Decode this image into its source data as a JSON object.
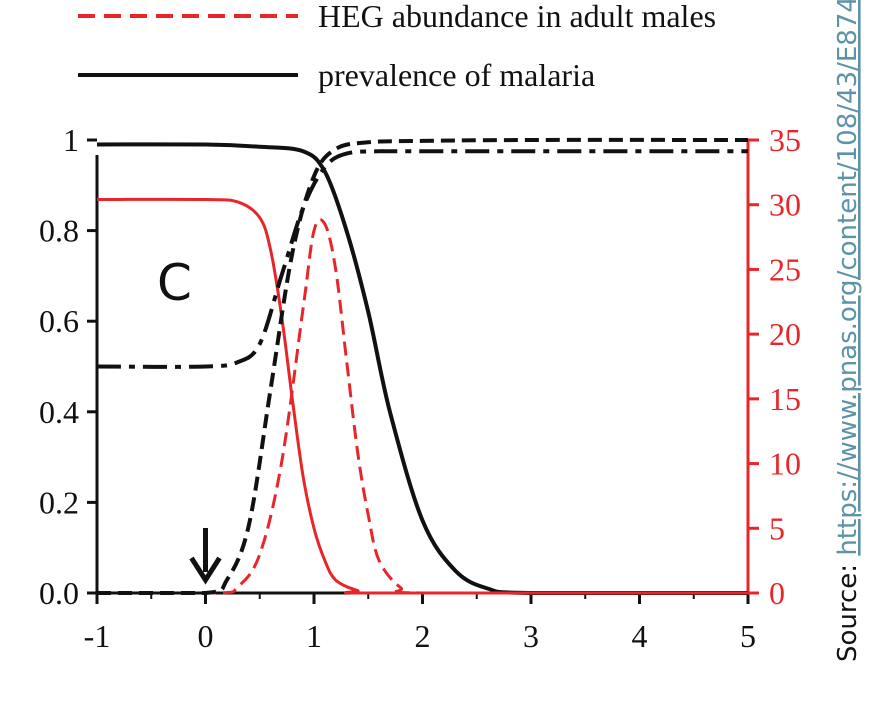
{
  "chart_data": {
    "type": "line",
    "panel_label": "C",
    "legend": [
      {
        "label": "HEG abundance in adult males",
        "color": "#e8262a",
        "style": "dashed"
      },
      {
        "label": "prevalence of malaria",
        "color": "#111111",
        "style": "solid"
      }
    ],
    "x_ticks": [
      "-1",
      "0",
      "1",
      "2",
      "3",
      "4",
      "5"
    ],
    "xlim": [
      -1,
      5
    ],
    "y_left_ticks": [
      "0.0",
      "0.2",
      "0.4",
      "0.6",
      "0.8",
      "1"
    ],
    "ylim_left": [
      0,
      1
    ],
    "y_right_ticks": [
      "0",
      "5",
      "10",
      "15",
      "20",
      "25",
      "30",
      "35"
    ],
    "ylim_right": [
      0,
      35
    ],
    "arrow_x": 0,
    "series": [
      {
        "name": "prevalence of malaria",
        "axis": "left",
        "color": "#111111",
        "style": "solid",
        "x": [
          -1,
          0,
          0.5,
          0.9,
          1.1,
          1.3,
          1.5,
          1.7,
          2.0,
          2.3,
          2.6,
          3.0,
          5
        ],
        "y": [
          0.99,
          0.99,
          0.985,
          0.975,
          0.93,
          0.8,
          0.62,
          0.4,
          0.16,
          0.05,
          0.01,
          0.0,
          0.0
        ]
      },
      {
        "axis": "right",
        "color": "#e8262a",
        "style": "solid",
        "x": [
          -1,
          0,
          0.3,
          0.5,
          0.6,
          0.7,
          0.8,
          0.9,
          1.0,
          1.1,
          1.2,
          1.4,
          1.6,
          5
        ],
        "y": [
          30.4,
          30.4,
          30.2,
          29.0,
          26.5,
          21.5,
          15.0,
          9.0,
          5.0,
          2.5,
          1.0,
          0.2,
          0.0,
          0.0
        ]
      },
      {
        "axis": "right",
        "color": "#e8262a",
        "style": "dashed",
        "x": [
          -1,
          0.1,
          0.3,
          0.5,
          0.7,
          0.9,
          1.0,
          1.1,
          1.2,
          1.3,
          1.4,
          1.5,
          1.6,
          1.8,
          2.0,
          5
        ],
        "y": [
          0.0,
          0.0,
          0.5,
          3.0,
          10.0,
          22.0,
          28.0,
          28.5,
          25.0,
          18.0,
          11.0,
          6.0,
          2.5,
          0.4,
          0.0,
          0.0
        ]
      },
      {
        "axis": "left",
        "color": "#111111",
        "style": "dashed",
        "x": [
          -1,
          0,
          0.2,
          0.4,
          0.6,
          0.8,
          1.0,
          1.2,
          1.5,
          2.0,
          3.0,
          5
        ],
        "y": [
          0.0,
          0.0,
          0.03,
          0.15,
          0.45,
          0.75,
          0.92,
          0.98,
          0.995,
          0.998,
          1.0,
          1.0
        ]
      },
      {
        "axis": "left",
        "color": "#111111",
        "style": "dashdot",
        "x": [
          -1,
          0,
          0.3,
          0.5,
          0.7,
          0.9,
          1.1,
          1.3,
          1.6,
          2.0,
          5
        ],
        "y": [
          0.5,
          0.5,
          0.51,
          0.55,
          0.7,
          0.85,
          0.94,
          0.97,
          0.975,
          0.975,
          0.975
        ]
      }
    ]
  },
  "source": {
    "prefix": "Source: ",
    "link_text": "https://www.pnas.org/content/108/43/E874"
  }
}
